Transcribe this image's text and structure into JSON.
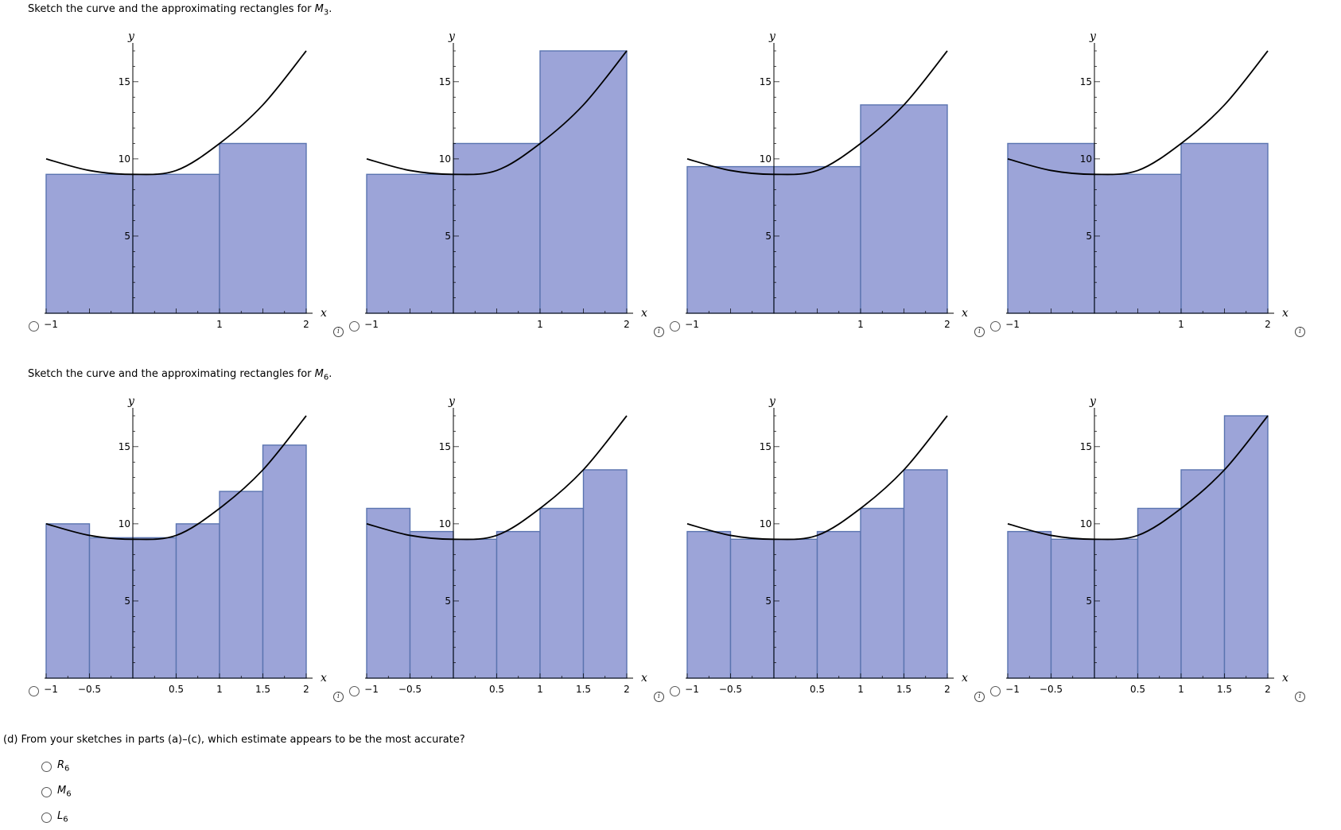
{
  "questions": {
    "m3": {
      "text": "Sketch the curve and the approximating rectangles for ",
      "var": "M",
      "sub": "3",
      "end": "."
    },
    "m6": {
      "text": "Sketch the curve and the approximating rectangles for ",
      "var": "M",
      "sub": "6",
      "end": "."
    },
    "d": {
      "text": "(d)  From your sketches in parts (a)–(c), which estimate appears to be the most accurate?",
      "options": [
        {
          "var": "R",
          "sub": "6"
        },
        {
          "var": "M",
          "sub": "6"
        },
        {
          "var": "L",
          "sub": "6"
        }
      ]
    }
  },
  "info_icon": "info-icon",
  "colors": {
    "rect_fill": "#9ca4d8",
    "rect_stroke": "#5a74b0",
    "curve": "#000000"
  },
  "chart_data": [
    {
      "type": "bar",
      "group": "M3",
      "option": 1,
      "xlabel": "x",
      "ylabel": "y",
      "xlim": [
        -1,
        2
      ],
      "ylim": [
        0,
        17
      ],
      "x_ticks": [
        -1,
        1,
        2
      ],
      "y_ticks": [
        5,
        10,
        15
      ],
      "curve": {
        "x": [
          -1,
          -0.5,
          0,
          0.5,
          1,
          1.5,
          2
        ],
        "y": [
          10,
          9.25,
          9,
          9.25,
          11,
          13.5,
          17
        ]
      },
      "rects": [
        {
          "x0": -1,
          "x1": 0,
          "h": 9
        },
        {
          "x0": 0,
          "x1": 1,
          "h": 9
        },
        {
          "x0": 1,
          "x1": 2,
          "h": 11
        }
      ]
    },
    {
      "type": "bar",
      "group": "M3",
      "option": 2,
      "xlabel": "x",
      "ylabel": "y",
      "xlim": [
        -1,
        2
      ],
      "ylim": [
        0,
        17
      ],
      "x_ticks": [
        -1,
        1,
        2
      ],
      "y_ticks": [
        5,
        10,
        15
      ],
      "curve": {
        "x": [
          -1,
          -0.5,
          0,
          0.5,
          1,
          1.5,
          2
        ],
        "y": [
          10,
          9.25,
          9,
          9.25,
          11,
          13.5,
          17
        ]
      },
      "rects": [
        {
          "x0": -1,
          "x1": 0,
          "h": 9
        },
        {
          "x0": 0,
          "x1": 1,
          "h": 11
        },
        {
          "x0": 1,
          "x1": 2,
          "h": 17
        }
      ]
    },
    {
      "type": "bar",
      "group": "M3",
      "option": 3,
      "xlabel": "x",
      "ylabel": "y",
      "xlim": [
        -1,
        2
      ],
      "ylim": [
        0,
        17
      ],
      "x_ticks": [
        -1,
        1,
        2
      ],
      "y_ticks": [
        5,
        10,
        15
      ],
      "curve": {
        "x": [
          -1,
          -0.5,
          0,
          0.5,
          1,
          1.5,
          2
        ],
        "y": [
          10,
          9.25,
          9,
          9.25,
          11,
          13.5,
          17
        ]
      },
      "rects": [
        {
          "x0": -1,
          "x1": 0,
          "h": 9.5
        },
        {
          "x0": 0,
          "x1": 1,
          "h": 9.5
        },
        {
          "x0": 1,
          "x1": 2,
          "h": 13.5
        }
      ]
    },
    {
      "type": "bar",
      "group": "M3",
      "option": 4,
      "xlabel": "x",
      "ylabel": "y",
      "xlim": [
        -1,
        2
      ],
      "ylim": [
        0,
        17
      ],
      "x_ticks": [
        -1,
        1,
        2
      ],
      "y_ticks": [
        5,
        10,
        15
      ],
      "curve": {
        "x": [
          -1,
          -0.5,
          0,
          0.5,
          1,
          1.5,
          2
        ],
        "y": [
          10,
          9.25,
          9,
          9.25,
          11,
          13.5,
          17
        ]
      },
      "rects": [
        {
          "x0": -1,
          "x1": 0,
          "h": 11
        },
        {
          "x0": 0,
          "x1": 1,
          "h": 9
        },
        {
          "x0": 1,
          "x1": 2,
          "h": 11
        }
      ]
    },
    {
      "type": "bar",
      "group": "M6",
      "option": 1,
      "xlabel": "x",
      "ylabel": "y",
      "xlim": [
        -1,
        2
      ],
      "ylim": [
        0,
        17
      ],
      "x_ticks": [
        -1,
        -0.5,
        0.5,
        1,
        1.5,
        2
      ],
      "y_ticks": [
        5,
        10,
        15
      ],
      "curve": {
        "x": [
          -1,
          -0.5,
          0,
          0.5,
          1,
          1.5,
          2
        ],
        "y": [
          10,
          9.25,
          9,
          9.25,
          11,
          13.5,
          17
        ]
      },
      "rects": [
        {
          "x0": -1,
          "x1": -0.5,
          "h": 10
        },
        {
          "x0": -0.5,
          "x1": 0,
          "h": 9.1
        },
        {
          "x0": 0,
          "x1": 0.5,
          "h": 9.1
        },
        {
          "x0": 0.5,
          "x1": 1,
          "h": 10
        },
        {
          "x0": 1,
          "x1": 1.5,
          "h": 12.1
        },
        {
          "x0": 1.5,
          "x1": 2,
          "h": 15.1
        }
      ]
    },
    {
      "type": "bar",
      "group": "M6",
      "option": 2,
      "xlabel": "x",
      "ylabel": "y",
      "xlim": [
        -1,
        2
      ],
      "ylim": [
        0,
        17
      ],
      "x_ticks": [
        -1,
        -0.5,
        0.5,
        1,
        1.5,
        2
      ],
      "y_ticks": [
        5,
        10,
        15
      ],
      "curve": {
        "x": [
          -1,
          -0.5,
          0,
          0.5,
          1,
          1.5,
          2
        ],
        "y": [
          10,
          9.25,
          9,
          9.25,
          11,
          13.5,
          17
        ]
      },
      "rects": [
        {
          "x0": -1,
          "x1": -0.5,
          "h": 11
        },
        {
          "x0": -0.5,
          "x1": 0,
          "h": 9.5
        },
        {
          "x0": 0,
          "x1": 0.5,
          "h": 9
        },
        {
          "x0": 0.5,
          "x1": 1,
          "h": 9.5
        },
        {
          "x0": 1,
          "x1": 1.5,
          "h": 11
        },
        {
          "x0": 1.5,
          "x1": 2,
          "h": 13.5
        }
      ]
    },
    {
      "type": "bar",
      "group": "M6",
      "option": 3,
      "xlabel": "x",
      "ylabel": "y",
      "xlim": [
        -1,
        2
      ],
      "ylim": [
        0,
        17
      ],
      "x_ticks": [
        -1,
        -0.5,
        0.5,
        1,
        1.5,
        2
      ],
      "y_ticks": [
        5,
        10,
        15
      ],
      "curve": {
        "x": [
          -1,
          -0.5,
          0,
          0.5,
          1,
          1.5,
          2
        ],
        "y": [
          10,
          9.25,
          9,
          9.25,
          11,
          13.5,
          17
        ]
      },
      "rects": [
        {
          "x0": -1,
          "x1": -0.5,
          "h": 9.5
        },
        {
          "x0": -0.5,
          "x1": 0,
          "h": 9
        },
        {
          "x0": 0,
          "x1": 0.5,
          "h": 9
        },
        {
          "x0": 0.5,
          "x1": 1,
          "h": 9.5
        },
        {
          "x0": 1,
          "x1": 1.5,
          "h": 11
        },
        {
          "x0": 1.5,
          "x1": 2,
          "h": 13.5
        }
      ]
    },
    {
      "type": "bar",
      "group": "M6",
      "option": 4,
      "xlabel": "x",
      "ylabel": "y",
      "xlim": [
        -1,
        2
      ],
      "ylim": [
        0,
        17
      ],
      "x_ticks": [
        -1,
        -0.5,
        0.5,
        1,
        1.5,
        2
      ],
      "y_ticks": [
        5,
        10,
        15
      ],
      "curve": {
        "x": [
          -1,
          -0.5,
          0,
          0.5,
          1,
          1.5,
          2
        ],
        "y": [
          10,
          9.25,
          9,
          9.25,
          11,
          13.5,
          17
        ]
      },
      "rects": [
        {
          "x0": -1,
          "x1": -0.5,
          "h": 9.5
        },
        {
          "x0": -0.5,
          "x1": 0,
          "h": 9
        },
        {
          "x0": 0,
          "x1": 0.5,
          "h": 9
        },
        {
          "x0": 0.5,
          "x1": 1,
          "h": 11
        },
        {
          "x0": 1,
          "x1": 1.5,
          "h": 13.5
        },
        {
          "x0": 1.5,
          "x1": 2,
          "h": 17
        }
      ]
    }
  ]
}
